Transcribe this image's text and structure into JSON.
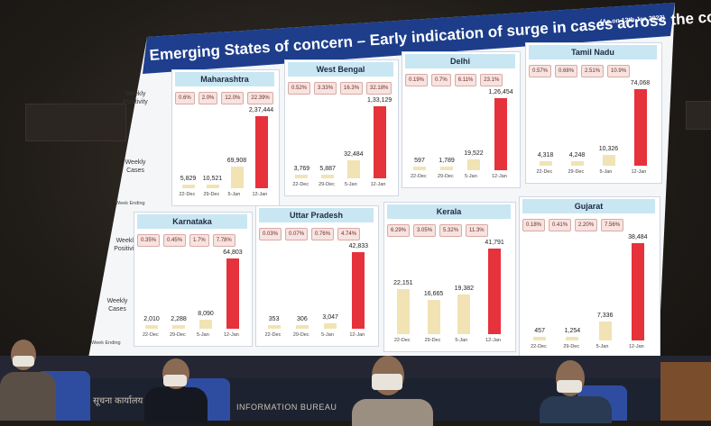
{
  "title": "Emerging States of concern – Early indication of surge in cases across the country",
  "title_date": "(As on 12th Jan 2022)",
  "row_labels": {
    "positivity": "Weekly Positivity",
    "cases": "Weekly Cases",
    "week": "Week Ending"
  },
  "dates": [
    "22-Dec",
    "29-Dec",
    "5-Jan",
    "12-Jan"
  ],
  "states": [
    {
      "name": "Maharashtra",
      "positivity": [
        "0.6%",
        "2.0%",
        "12.0%",
        "22.39%"
      ],
      "cases": [
        "5,829",
        "10,521",
        "69,908",
        "2,37,444"
      ],
      "values": [
        5829,
        10521,
        69908,
        237444
      ]
    },
    {
      "name": "West Bengal",
      "positivity": [
        "0.52%",
        "3.33%",
        "16.3%",
        "32.18%"
      ],
      "cases": [
        "3,769",
        "5,887",
        "32,484",
        "1,33,129"
      ],
      "values": [
        3769,
        5887,
        32484,
        133129
      ]
    },
    {
      "name": "Delhi",
      "positivity": [
        "0.19%",
        "0.7%",
        "6.11%",
        "23.1%"
      ],
      "cases": [
        "597",
        "1,789",
        "19,522",
        "1,26,454"
      ],
      "values": [
        597,
        1789,
        19522,
        126454
      ]
    },
    {
      "name": "Tamil Nadu",
      "positivity": [
        "0.57%",
        "0.68%",
        "2.51%",
        "10.9%"
      ],
      "cases": [
        "4,318",
        "4,248",
        "10,326",
        "74,068"
      ],
      "values": [
        4318,
        4248,
        10326,
        74068
      ]
    },
    {
      "name": "Karnataka",
      "positivity": [
        "0.35%",
        "0.45%",
        "1.7%",
        "7.78%"
      ],
      "cases": [
        "2,010",
        "2,288",
        "8,090",
        "64,803"
      ],
      "values": [
        2010,
        2288,
        8090,
        64803
      ]
    },
    {
      "name": "Uttar Pradesh",
      "positivity": [
        "0.03%",
        "0.07%",
        "0.76%",
        "4.74%"
      ],
      "cases": [
        "353",
        "306",
        "3,047",
        "42,833"
      ],
      "values": [
        353,
        306,
        3047,
        42833
      ]
    },
    {
      "name": "Kerala",
      "positivity": [
        "6.29%",
        "3.05%",
        "5.32%",
        "11.3%"
      ],
      "cases": [
        "22,151",
        "16,665",
        "19,382",
        "41,791"
      ],
      "values": [
        22151,
        16665,
        19382,
        41791
      ]
    },
    {
      "name": "Gujarat",
      "positivity": [
        "0.18%",
        "0.41%",
        "2.20%",
        "7.56%"
      ],
      "cases": [
        "457",
        "1,254",
        "7,336",
        "38,484"
      ],
      "values": [
        457,
        1254,
        7336,
        38484
      ]
    }
  ],
  "footer": {
    "bureau": "INFORMATION BUREAU",
    "hindi": "सूचना कार्यालय"
  },
  "colors": {
    "title_bg": "#1f3f8f",
    "state_head": "#c9e6f3",
    "bar_high": "#e6323a",
    "bar_low": "#f1e3b4",
    "pct_bg": "#f7e3e0"
  }
}
